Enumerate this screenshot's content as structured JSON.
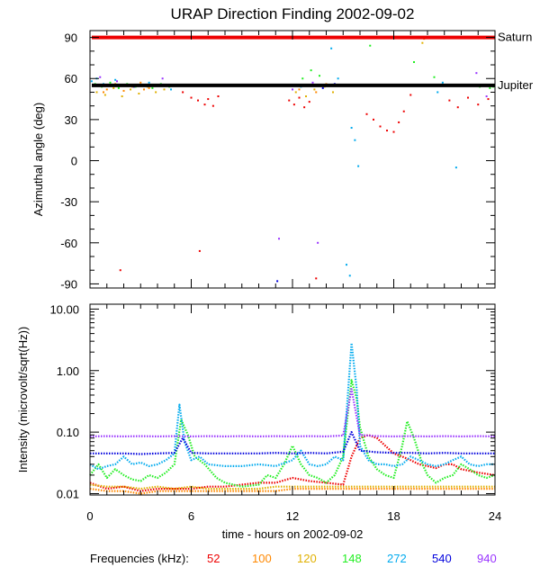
{
  "chart_data": [
    {
      "type": "scatter",
      "title": "URAP Direction Finding  2002-09-02",
      "ylabel": "Azimuthal angle (deg)",
      "xlim": [
        0,
        24
      ],
      "ylim": [
        -90,
        90
      ],
      "yticks": [
        90,
        60,
        30,
        0,
        -30,
        -60,
        -90
      ],
      "ytick_labels": [
        "90",
        "60",
        "30",
        "0",
        "-30",
        "-60",
        "-90"
      ],
      "reference_lines": [
        {
          "name": "Saturn",
          "value": 90,
          "color": "#ee0000"
        },
        {
          "name": "Jupiter",
          "value": 55,
          "color": "#000000"
        }
      ],
      "series": [
        {
          "name": "52",
          "color": "#ee0000",
          "points": [
            [
              5.5,
              50
            ],
            [
              6.0,
              46
            ],
            [
              6.4,
              44
            ],
            [
              6.8,
              41
            ],
            [
              7.0,
              45
            ],
            [
              7.3,
              40
            ],
            [
              7.6,
              47
            ],
            [
              11.8,
              44
            ],
            [
              12.1,
              41
            ],
            [
              12.4,
              46
            ],
            [
              12.7,
              39
            ],
            [
              13.0,
              43
            ],
            [
              16.4,
              34
            ],
            [
              16.8,
              30
            ],
            [
              17.2,
              25
            ],
            [
              17.6,
              22
            ],
            [
              18.0,
              21
            ],
            [
              18.3,
              28
            ],
            [
              18.6,
              36
            ],
            [
              19.0,
              48
            ],
            [
              21.3,
              44
            ],
            [
              21.8,
              39
            ],
            [
              22.4,
              46
            ],
            [
              23.0,
              41
            ],
            [
              23.6,
              45
            ],
            [
              6.5,
              -66
            ],
            [
              1.8,
              -80
            ],
            [
              13.4,
              -86
            ]
          ]
        },
        {
          "name": "100",
          "color": "#ff8800",
          "points": [
            [
              0.5,
              55
            ],
            [
              1.0,
              52
            ],
            [
              1.5,
              56
            ],
            [
              2.0,
              51
            ],
            [
              2.5,
              54
            ],
            [
              3.0,
              57
            ],
            [
              3.5,
              53
            ],
            [
              4.0,
              55
            ],
            [
              12.4,
              52
            ],
            [
              12.9,
              55
            ],
            [
              13.4,
              50
            ],
            [
              14.0,
              56
            ],
            [
              19.8,
              89
            ],
            [
              0.8,
              50
            ],
            [
              3.2,
              52
            ]
          ]
        },
        {
          "name": "120",
          "color": "#e0b000",
          "points": [
            [
              0.4,
              50
            ],
            [
              0.9,
              48
            ],
            [
              1.4,
              53
            ],
            [
              1.9,
              47
            ],
            [
              2.4,
              52
            ],
            [
              2.9,
              49
            ],
            [
              3.4,
              54
            ],
            [
              3.9,
              50
            ],
            [
              4.4,
              52
            ],
            [
              12.2,
              50
            ],
            [
              12.8,
              47
            ],
            [
              13.3,
              52
            ],
            [
              13.9,
              54
            ],
            [
              14.4,
              50
            ],
            [
              19.7,
              86
            ]
          ]
        },
        {
          "name": "148",
          "color": "#22ee22",
          "points": [
            [
              0.3,
              56
            ],
            [
              0.7,
              54
            ],
            [
              1.2,
              57
            ],
            [
              1.7,
              53
            ],
            [
              2.2,
              56
            ],
            [
              2.7,
              54
            ],
            [
              3.2,
              55
            ],
            [
              3.7,
              53
            ],
            [
              4.2,
              56
            ],
            [
              4.7,
              54
            ],
            [
              12.6,
              60
            ],
            [
              13.1,
              66
            ],
            [
              13.6,
              62
            ],
            [
              16.6,
              84
            ],
            [
              19.2,
              72
            ],
            [
              19.6,
              90
            ],
            [
              23.1,
              54
            ],
            [
              23.4,
              55
            ],
            [
              23.7,
              53
            ],
            [
              23.9,
              54
            ],
            [
              20.4,
              61
            ]
          ]
        },
        {
          "name": "272",
          "color": "#00aaee",
          "points": [
            [
              0.1,
              58
            ],
            [
              0.4,
              60
            ],
            [
              0.8,
              56
            ],
            [
              1.5,
              59
            ],
            [
              3.5,
              57
            ],
            [
              4.8,
              52
            ],
            [
              11.5,
              90
            ],
            [
              12.5,
              54
            ],
            [
              14.3,
              82
            ],
            [
              15.5,
              24
            ],
            [
              15.7,
              15
            ],
            [
              15.9,
              -4
            ],
            [
              15.2,
              -76
            ],
            [
              15.4,
              -84
            ],
            [
              20.6,
              50
            ],
            [
              20.9,
              57
            ],
            [
              21.7,
              -5
            ],
            [
              14.7,
              60
            ]
          ]
        },
        {
          "name": "540",
          "color": "#0000dd",
          "points": [
            [
              1.3,
              55
            ],
            [
              2.6,
              54
            ],
            [
              13.8,
              53
            ],
            [
              14.5,
              56
            ],
            [
              19.9,
              55
            ],
            [
              11.1,
              -88
            ]
          ]
        },
        {
          "name": "940",
          "color": "#9933ff",
          "points": [
            [
              0.6,
              61
            ],
            [
              1.6,
              58
            ],
            [
              4.3,
              60
            ],
            [
              12.0,
              52
            ],
            [
              13.2,
              57
            ],
            [
              20.3,
              55
            ],
            [
              22.9,
              64
            ],
            [
              11.2,
              -57
            ],
            [
              13.5,
              -60
            ],
            [
              23.5,
              47
            ]
          ]
        }
      ]
    },
    {
      "type": "line",
      "xlabel": "time - hours on 2002-09-02",
      "ylabel": "Intensity (microvolt/sqrt(Hz))",
      "xlim": [
        0,
        24
      ],
      "ylim": [
        0.01,
        10
      ],
      "yscale": "log",
      "xticks": [
        0,
        6,
        12,
        18,
        24
      ],
      "xtick_labels": [
        "0",
        "6",
        "12",
        "18",
        "24"
      ],
      "yticks": [
        10,
        1,
        0.1,
        0.01
      ],
      "ytick_labels": [
        "10.00",
        "1.00",
        "0.10",
        "0.01"
      ],
      "series": [
        {
          "name": "52",
          "color": "#ee0000",
          "x": [
            0.0,
            1.0,
            2.0,
            3.0,
            4.0,
            5.0,
            6.0,
            7.0,
            8.0,
            9.0,
            10.0,
            11.0,
            12.0,
            13.0,
            14.0,
            15.0,
            15.5,
            16.0,
            16.5,
            17.0,
            17.5,
            18.0,
            18.5,
            19.0,
            19.5,
            20.0,
            20.5,
            21.0,
            21.5,
            22.0,
            23.0,
            24.0
          ],
          "y": [
            0.015,
            0.012,
            0.013,
            0.011,
            0.012,
            0.012,
            0.012,
            0.013,
            0.013,
            0.014,
            0.015,
            0.015,
            0.018,
            0.016,
            0.015,
            0.014,
            0.04,
            0.08,
            0.09,
            0.08,
            0.06,
            0.045,
            0.04,
            0.035,
            0.03,
            0.028,
            0.026,
            0.03,
            0.03,
            0.025,
            0.022,
            0.02
          ]
        },
        {
          "name": "100",
          "color": "#ff8800",
          "x": [
            0.0,
            1.0,
            2.0,
            3.0,
            4.0,
            5.0,
            6.0,
            7.0,
            8.0,
            9.0,
            10.0,
            11.0,
            12.0,
            13.0,
            14.0,
            15.0,
            16.0,
            17.0,
            18.0,
            19.0,
            20.0,
            21.0,
            22.0,
            23.0,
            24.0
          ],
          "y": [
            0.012,
            0.011,
            0.011,
            0.01,
            0.011,
            0.011,
            0.011,
            0.011,
            0.011,
            0.011,
            0.011,
            0.011,
            0.012,
            0.012,
            0.012,
            0.012,
            0.012,
            0.012,
            0.012,
            0.012,
            0.012,
            0.012,
            0.012,
            0.012,
            0.012
          ]
        },
        {
          "name": "120",
          "color": "#e0b000",
          "x": [
            0.0,
            1.0,
            2.0,
            3.0,
            4.0,
            5.0,
            6.0,
            7.0,
            8.0,
            9.0,
            10.0,
            11.0,
            12.0,
            13.0,
            14.0,
            15.0,
            16.0,
            17.0,
            18.0,
            19.0,
            20.0,
            21.0,
            22.0,
            23.0,
            24.0
          ],
          "y": [
            0.014,
            0.013,
            0.013,
            0.012,
            0.013,
            0.012,
            0.013,
            0.012,
            0.012,
            0.012,
            0.012,
            0.013,
            0.013,
            0.013,
            0.013,
            0.013,
            0.013,
            0.013,
            0.013,
            0.013,
            0.013,
            0.013,
            0.013,
            0.013,
            0.013
          ]
        },
        {
          "name": "148",
          "color": "#22ee22",
          "x": [
            0.0,
            0.5,
            1.0,
            1.5,
            2.0,
            2.5,
            3.0,
            3.5,
            4.0,
            4.5,
            5.0,
            5.4,
            5.8,
            6.2,
            6.8,
            7.5,
            8.0,
            9.0,
            10.0,
            10.5,
            11.0,
            11.5,
            12.0,
            12.5,
            13.0,
            13.5,
            14.0,
            14.5,
            15.0,
            15.5,
            15.8,
            16.0,
            16.5,
            17.0,
            17.5,
            18.0,
            18.5,
            18.8,
            19.2,
            19.7,
            20.0,
            20.5,
            21.0,
            21.5,
            22.0,
            22.5,
            23.0,
            23.5,
            24.0
          ],
          "y": [
            0.02,
            0.03,
            0.018,
            0.025,
            0.02,
            0.017,
            0.016,
            0.02,
            0.018,
            0.022,
            0.03,
            0.16,
            0.09,
            0.04,
            0.03,
            0.018,
            0.015,
            0.013,
            0.014,
            0.02,
            0.018,
            0.03,
            0.06,
            0.03,
            0.02,
            0.018,
            0.015,
            0.02,
            0.04,
            0.7,
            0.35,
            0.12,
            0.04,
            0.025,
            0.02,
            0.018,
            0.06,
            0.15,
            0.08,
            0.03,
            0.02,
            0.015,
            0.018,
            0.02,
            0.03,
            0.025,
            0.02,
            0.018,
            0.02
          ]
        },
        {
          "name": "272",
          "color": "#00aaee",
          "x": [
            0.0,
            0.5,
            1.0,
            1.5,
            2.0,
            2.5,
            3.0,
            3.5,
            4.0,
            4.5,
            5.0,
            5.3,
            5.6,
            6.0,
            6.5,
            7.0,
            8.0,
            9.0,
            10.0,
            11.0,
            12.0,
            12.5,
            13.0,
            13.5,
            14.0,
            14.5,
            15.0,
            15.5,
            15.8,
            16.0,
            16.5,
            17.0,
            17.5,
            18.0,
            18.5,
            19.0,
            19.5,
            20.0,
            20.5,
            21.0,
            21.5,
            22.0,
            22.5,
            23.0,
            23.5,
            24.0
          ],
          "y": [
            0.03,
            0.025,
            0.028,
            0.03,
            0.04,
            0.03,
            0.032,
            0.028,
            0.03,
            0.035,
            0.045,
            0.28,
            0.07,
            0.035,
            0.04,
            0.03,
            0.028,
            0.028,
            0.03,
            0.028,
            0.035,
            0.05,
            0.03,
            0.028,
            0.03,
            0.04,
            0.035,
            2.8,
            0.5,
            0.06,
            0.035,
            0.03,
            0.03,
            0.028,
            0.03,
            0.04,
            0.035,
            0.03,
            0.028,
            0.03,
            0.035,
            0.04,
            0.03,
            0.028,
            0.03,
            0.03
          ]
        },
        {
          "name": "540",
          "color": "#0000dd",
          "x": [
            0.0,
            1.0,
            2.0,
            3.0,
            4.0,
            5.0,
            5.5,
            6.0,
            7.0,
            8.0,
            9.0,
            10.0,
            11.0,
            12.0,
            13.0,
            14.0,
            15.0,
            15.5,
            16.0,
            17.0,
            18.0,
            19.0,
            20.0,
            21.0,
            22.0,
            23.0,
            24.0
          ],
          "y": [
            0.045,
            0.045,
            0.045,
            0.044,
            0.045,
            0.046,
            0.08,
            0.046,
            0.045,
            0.045,
            0.045,
            0.045,
            0.046,
            0.045,
            0.046,
            0.045,
            0.048,
            0.1,
            0.05,
            0.047,
            0.046,
            0.046,
            0.045,
            0.046,
            0.045,
            0.045,
            0.045
          ]
        },
        {
          "name": "940",
          "color": "#9933ff",
          "x": [
            0.0,
            1.0,
            2.0,
            3.0,
            4.0,
            5.0,
            6.0,
            7.0,
            8.0,
            9.0,
            10.0,
            11.0,
            12.0,
            13.0,
            14.0,
            15.0,
            15.5,
            16.0,
            17.0,
            18.0,
            19.0,
            20.0,
            21.0,
            22.0,
            23.0,
            24.0
          ],
          "y": [
            0.085,
            0.086,
            0.085,
            0.086,
            0.085,
            0.086,
            0.085,
            0.086,
            0.085,
            0.086,
            0.085,
            0.086,
            0.085,
            0.086,
            0.085,
            0.088,
            0.5,
            0.09,
            0.086,
            0.085,
            0.086,
            0.085,
            0.086,
            0.085,
            0.086,
            0.085
          ]
        }
      ]
    }
  ],
  "legend": {
    "label": "Frequencies (kHz):",
    "items": [
      {
        "name": "52",
        "color": "#ee0000"
      },
      {
        "name": "100",
        "color": "#ff8800"
      },
      {
        "name": "120",
        "color": "#e0b000"
      },
      {
        "name": "148",
        "color": "#22ee22"
      },
      {
        "name": "272",
        "color": "#00aaee"
      },
      {
        "name": "540",
        "color": "#0000dd"
      },
      {
        "name": "940",
        "color": "#9933ff"
      }
    ]
  }
}
